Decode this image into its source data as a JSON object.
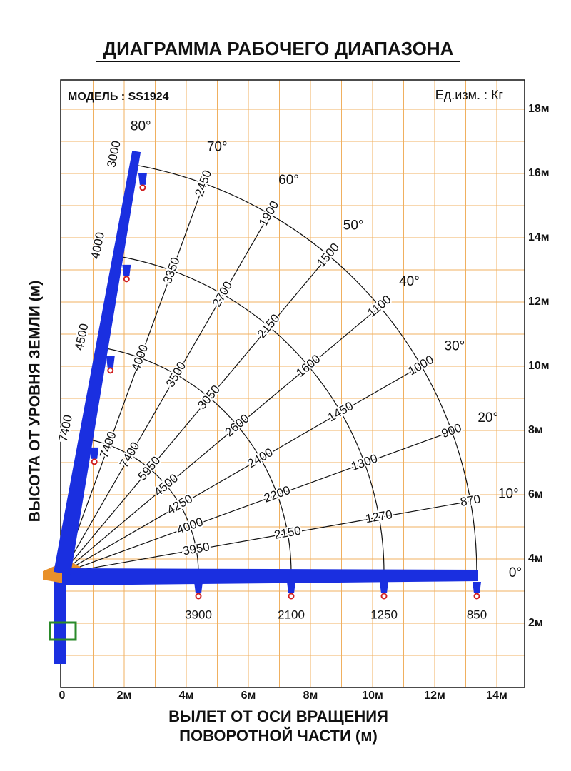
{
  "title": "ДИАГРАММА РАБОЧЕГО ДИАПАЗОНА",
  "model": "МОДЕЛЬ : SS1924",
  "units": "Ед.изм. : Кг",
  "y_axis": {
    "title": "ВЫСОТА ОТ УРОВНЯ ЗЕМЛИ (м)",
    "ticks": [
      "2м",
      "4м",
      "6м",
      "8м",
      "10м",
      "12м",
      "14м",
      "16м",
      "18м"
    ]
  },
  "x_axis": {
    "title_lines": [
      "ВЫЛЕТ ОТ ОСИ ВРАЩЕНИЯ",
      "ПОВОРОТНОЙ ЧАСТИ (м)"
    ],
    "ticks": [
      "0",
      "2м",
      "4м",
      "6м",
      "8м",
      "10м",
      "12м",
      "14м"
    ]
  },
  "angle_labels": [
    "80°",
    "70°",
    "60°",
    "50°",
    "40°",
    "30°",
    "20°",
    "10°",
    "0°"
  ],
  "boom_loads": [
    "7400",
    "4500",
    "4000",
    "3000"
  ],
  "hook_loads": [
    "3900",
    "2100",
    "1250",
    "850"
  ],
  "ray_loads": [
    [
      "3950",
      "2150",
      "1270",
      "870"
    ],
    [
      "4000",
      "2200",
      "1300",
      "900"
    ],
    [
      "4250",
      "2400",
      "1450",
      "1000"
    ],
    [
      "4500",
      "2600",
      "1600",
      "1100"
    ],
    [
      "5950",
      "3050",
      "2150",
      "1500"
    ],
    [
      "7400",
      "3500",
      "2700",
      "1900"
    ],
    [
      "7400",
      "4000",
      "3350",
      "2450"
    ]
  ]
}
